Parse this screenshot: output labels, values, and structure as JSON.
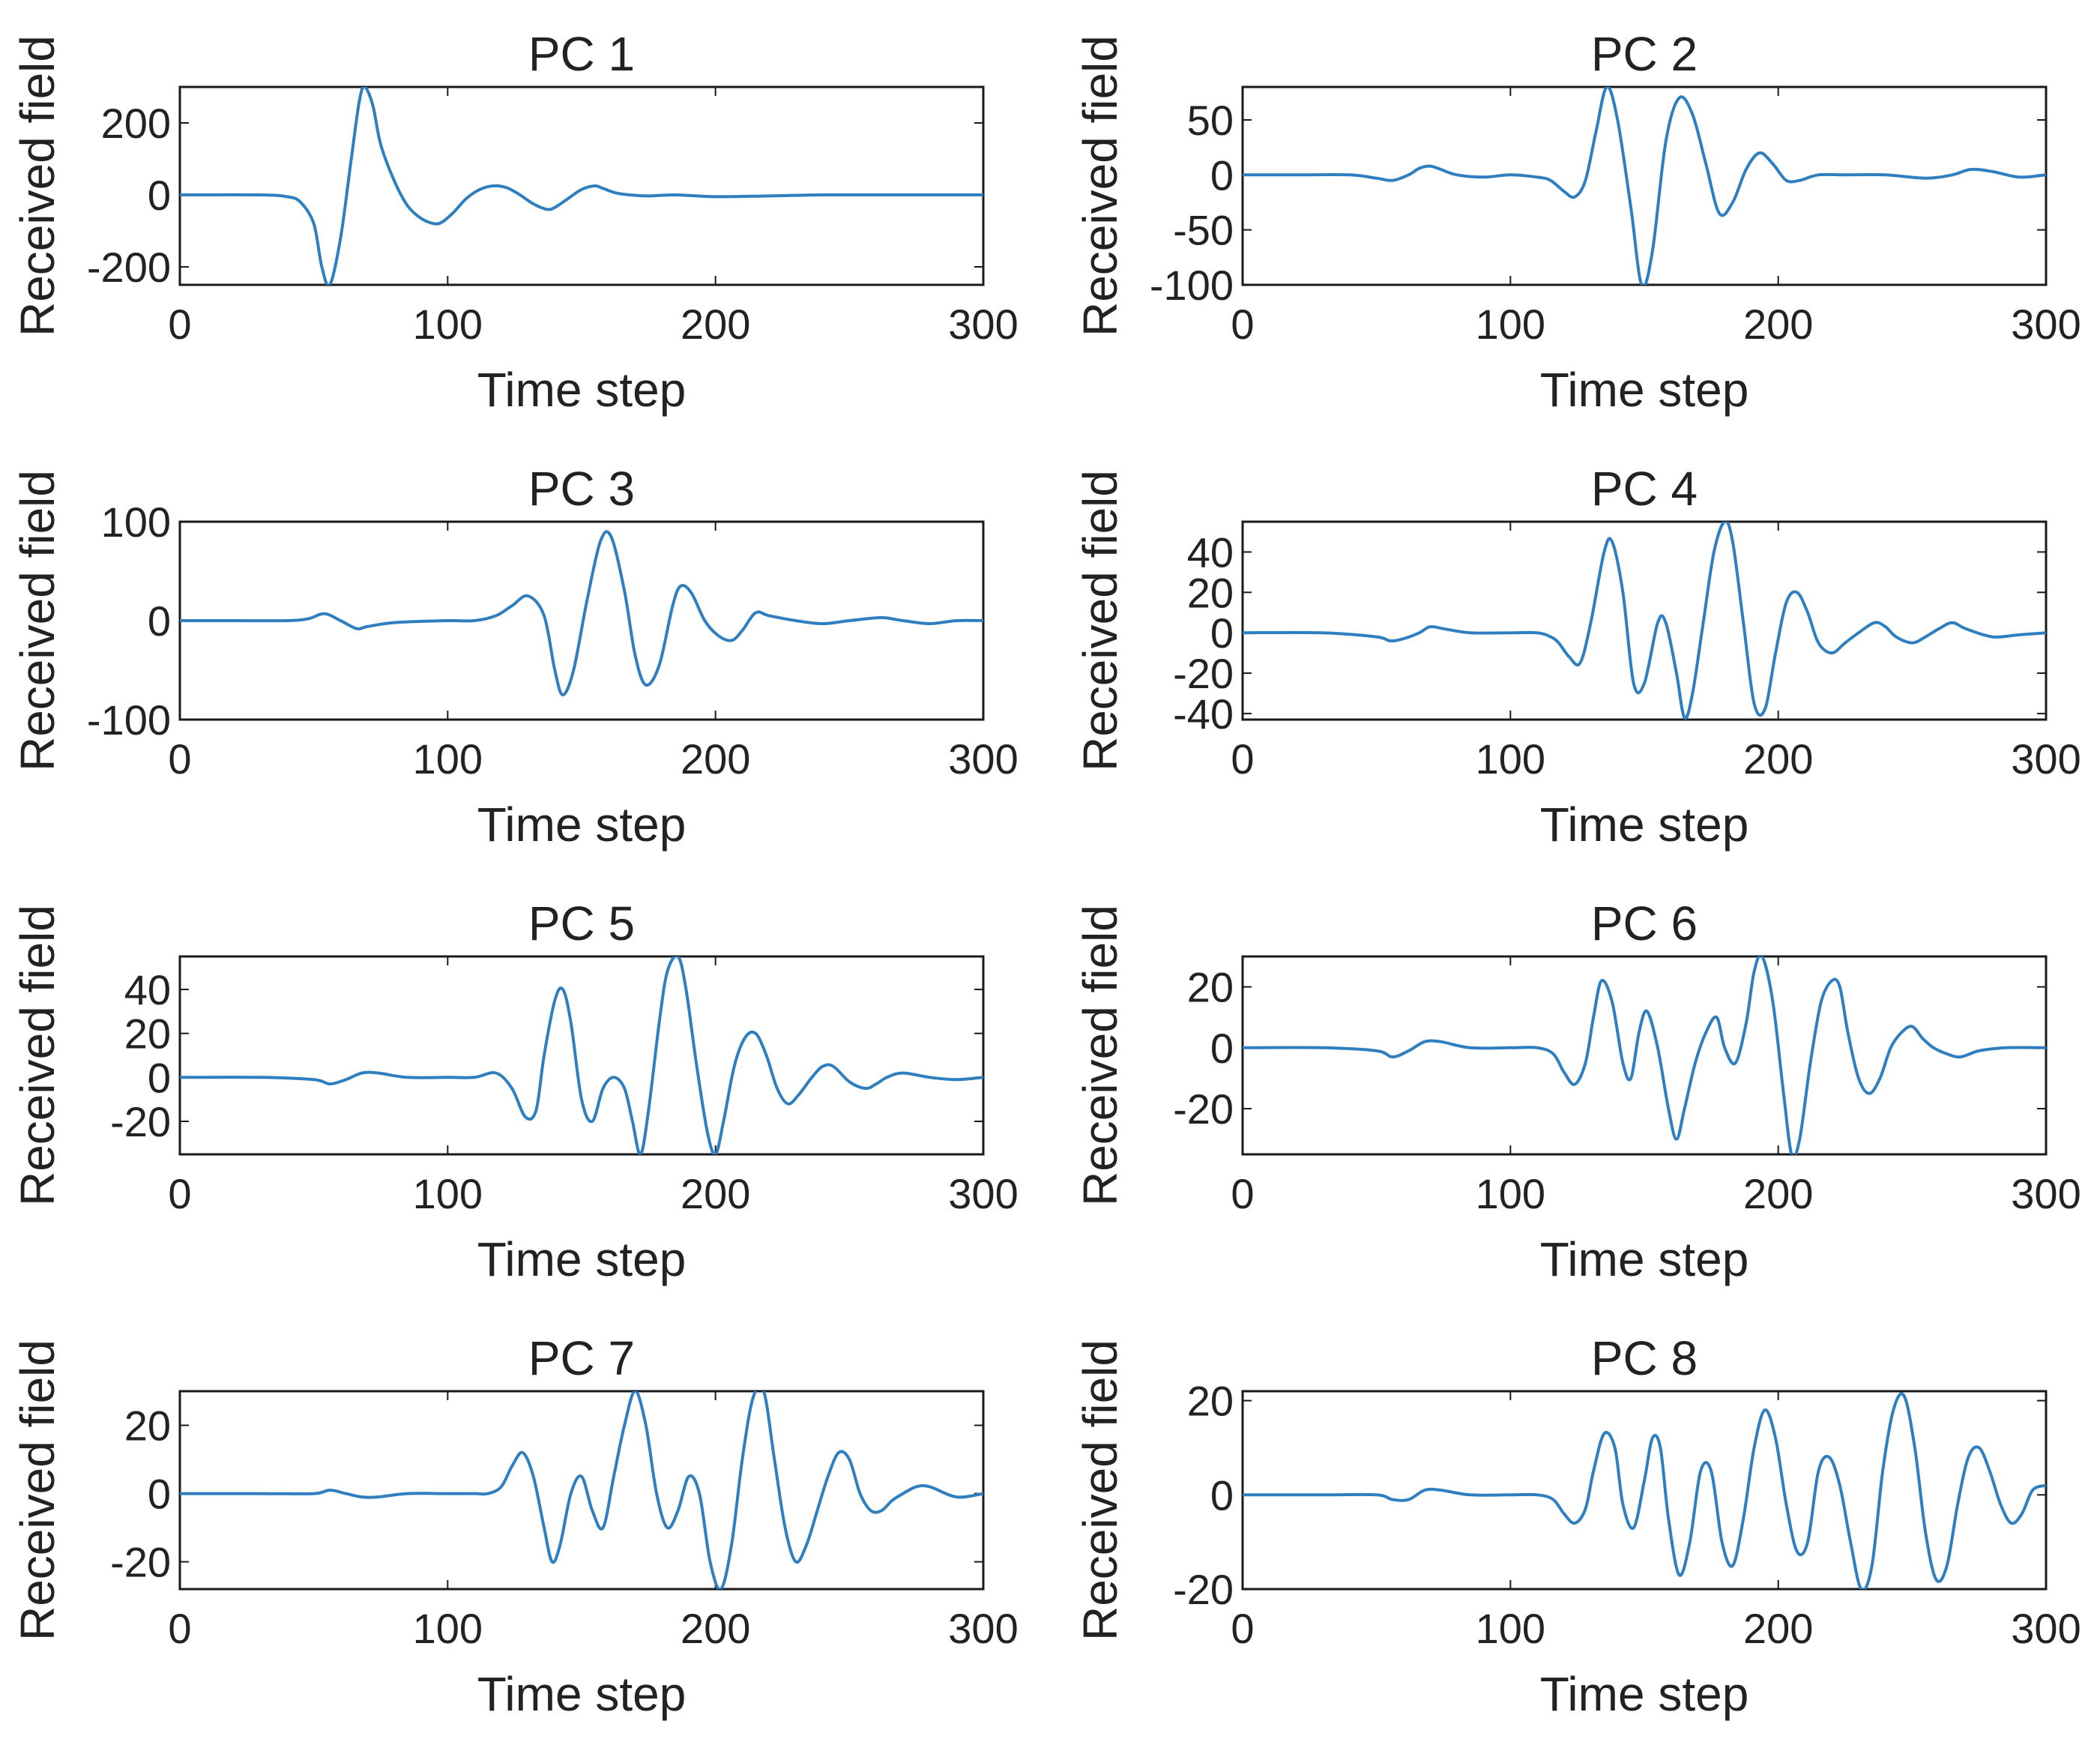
{
  "chart_data": [
    {
      "type": "line",
      "title": "PC 1",
      "xlabel": "Time step",
      "ylabel": "Received field",
      "xlim": [
        0,
        300
      ],
      "ylim": [
        -250,
        300
      ],
      "xticks": [
        "0",
        "100",
        "200",
        "300"
      ],
      "yticks": [
        -200,
        0,
        200
      ],
      "ytick_labels": [
        "-200",
        "0",
        "200"
      ],
      "series": [
        {
          "name": "PC 1",
          "color": "#2f7fc0",
          "x": [
            0,
            30,
            40,
            45,
            50,
            53,
            56,
            60,
            64,
            67,
            69,
            72,
            75,
            80,
            85,
            90,
            95,
            98,
            102,
            107,
            112,
            117,
            122,
            127,
            132,
            137,
            140,
            145,
            150,
            155,
            158,
            163,
            168,
            175,
            185,
            200,
            220,
            240,
            260,
            280,
            300
          ],
          "y": [
            0,
            0,
            -5,
            -20,
            -80,
            -200,
            -250,
            -120,
            100,
            260,
            300,
            250,
            140,
            40,
            -30,
            -65,
            -80,
            -75,
            -50,
            -10,
            15,
            25,
            20,
            0,
            -25,
            -40,
            -35,
            -10,
            15,
            25,
            18,
            5,
            0,
            -3,
            0,
            -5,
            -3,
            0,
            0,
            0,
            0
          ]
        }
      ]
    },
    {
      "type": "line",
      "title": "PC 2",
      "xlabel": "Time step",
      "ylabel": "Received field",
      "xlim": [
        0,
        300
      ],
      "ylim": [
        -100,
        80
      ],
      "xticks": [
        "0",
        "100",
        "200",
        "300"
      ],
      "yticks": [
        -100,
        -50,
        0,
        50
      ],
      "ytick_labels": [
        "-100",
        "-50",
        "0",
        "50"
      ],
      "series": [
        {
          "name": "PC 2",
          "color": "#2f7fc0",
          "x": [
            0,
            20,
            40,
            50,
            56,
            62,
            66,
            70,
            74,
            80,
            90,
            100,
            110,
            115,
            120,
            124,
            128,
            132,
            136,
            140,
            145,
            149,
            153,
            158,
            163,
            168,
            173,
            178,
            183,
            188,
            193,
            198,
            203,
            208,
            215,
            225,
            240,
            255,
            265,
            272,
            280,
            290,
            300
          ],
          "y": [
            0,
            0,
            0,
            -3,
            -5,
            0,
            6,
            8,
            5,
            0,
            -2,
            0,
            -2,
            -5,
            -15,
            -20,
            -5,
            40,
            80,
            50,
            -30,
            -100,
            -70,
            30,
            70,
            55,
            10,
            -35,
            -25,
            5,
            20,
            10,
            -5,
            -5,
            0,
            0,
            0,
            -3,
            0,
            5,
            3,
            -2,
            0
          ]
        }
      ]
    },
    {
      "type": "line",
      "title": "PC 3",
      "xlabel": "Time step",
      "ylabel": "Received field",
      "xlim": [
        0,
        300
      ],
      "ylim": [
        -100,
        100
      ],
      "xticks": [
        "0",
        "100",
        "200",
        "300"
      ],
      "yticks": [
        -100,
        0,
        100
      ],
      "ytick_labels": [
        "-100",
        "0",
        "100"
      ],
      "series": [
        {
          "name": "PC 3",
          "color": "#2f7fc0",
          "x": [
            0,
            20,
            40,
            48,
            54,
            60,
            66,
            70,
            80,
            100,
            110,
            118,
            124,
            130,
            136,
            140,
            143,
            147,
            152,
            157,
            161,
            166,
            170,
            174,
            179,
            184,
            187,
            191,
            196,
            201,
            206,
            210,
            215,
            220,
            230,
            240,
            250,
            262,
            270,
            280,
            290,
            300
          ],
          "y": [
            0,
            0,
            0,
            2,
            7,
            0,
            -8,
            -6,
            -2,
            0,
            0,
            5,
            15,
            25,
            5,
            -50,
            -75,
            -50,
            20,
            80,
            85,
            30,
            -35,
            -65,
            -45,
            15,
            35,
            28,
            0,
            -15,
            -20,
            -10,
            8,
            5,
            0,
            -3,
            0,
            3,
            0,
            -3,
            0,
            0
          ]
        }
      ]
    },
    {
      "type": "line",
      "title": "PC 4",
      "xlabel": "Time step",
      "ylabel": "Received field",
      "xlim": [
        0,
        300
      ],
      "ylim": [
        -43,
        55
      ],
      "xticks": [
        "0",
        "100",
        "200",
        "300"
      ],
      "yticks": [
        -40,
        -20,
        0,
        20,
        40
      ],
      "ytick_labels": [
        "-40",
        "-20",
        "0",
        "20",
        "40"
      ],
      "series": [
        {
          "name": "PC 4",
          "color": "#2f7fc0",
          "x": [
            0,
            30,
            50,
            55,
            60,
            66,
            70,
            75,
            85,
            100,
            110,
            115,
            118,
            122,
            126,
            130,
            135,
            138,
            142,
            146,
            150,
            155,
            158,
            162,
            165,
            168,
            172,
            176,
            180,
            183,
            187,
            191,
            195,
            199,
            203,
            207,
            211,
            215,
            220,
            225,
            230,
            236,
            240,
            244,
            250,
            255,
            260,
            265,
            270,
            280,
            290,
            300
          ],
          "y": [
            0,
            0,
            -2,
            -4,
            -3,
            0,
            3,
            2,
            0,
            0,
            0,
            -2,
            -5,
            -12,
            -15,
            5,
            40,
            45,
            20,
            -25,
            -25,
            5,
            5,
            -20,
            -42,
            -30,
            5,
            40,
            55,
            45,
            5,
            -35,
            -38,
            -10,
            15,
            20,
            10,
            -5,
            -10,
            -5,
            0,
            5,
            3,
            -2,
            -5,
            -2,
            2,
            5,
            2,
            -2,
            -1,
            0
          ]
        }
      ]
    },
    {
      "type": "line",
      "title": "PC 5",
      "xlabel": "Time step",
      "ylabel": "Received field",
      "xlim": [
        0,
        300
      ],
      "ylim": [
        -35,
        55
      ],
      "xticks": [
        "0",
        "100",
        "200",
        "300"
      ],
      "yticks": [
        -20,
        0,
        20,
        40
      ],
      "ytick_labels": [
        "-20",
        "0",
        "20",
        "40"
      ],
      "series": [
        {
          "name": "PC 5",
          "color": "#2f7fc0",
          "x": [
            0,
            30,
            50,
            56,
            62,
            68,
            74,
            85,
            100,
            110,
            118,
            124,
            129,
            133,
            136,
            140,
            143,
            146,
            150,
            154,
            158,
            162,
            166,
            169,
            172,
            175,
            179,
            182,
            186,
            189,
            193,
            197,
            200,
            203,
            207,
            211,
            215,
            219,
            223,
            227,
            231,
            236,
            240,
            244,
            250,
            256,
            260,
            264,
            270,
            280,
            290,
            300
          ],
          "y": [
            0,
            0,
            -1,
            -3,
            -1,
            2,
            2,
            0,
            0,
            0,
            2,
            -5,
            -18,
            -15,
            10,
            35,
            40,
            25,
            -10,
            -20,
            -5,
            0,
            -5,
            -20,
            -35,
            -15,
            25,
            48,
            55,
            40,
            5,
            -25,
            -35,
            -20,
            5,
            18,
            20,
            10,
            -5,
            -12,
            -8,
            0,
            5,
            5,
            -2,
            -5,
            -3,
            0,
            2,
            0,
            -1,
            0
          ]
        }
      ]
    },
    {
      "type": "line",
      "title": "PC 6",
      "xlabel": "Time step",
      "ylabel": "Received field",
      "xlim": [
        0,
        300
      ],
      "ylim": [
        -35,
        30
      ],
      "xticks": [
        "0",
        "100",
        "200",
        "300"
      ],
      "yticks": [
        -20,
        0,
        20
      ],
      "ytick_labels": [
        "-20",
        "0",
        "20"
      ],
      "series": [
        {
          "name": "PC 6",
          "color": "#2f7fc0",
          "x": [
            0,
            30,
            50,
            56,
            62,
            68,
            74,
            85,
            100,
            110,
            116,
            120,
            124,
            128,
            131,
            134,
            138,
            142,
            145,
            148,
            151,
            155,
            159,
            162,
            165,
            169,
            173,
            177,
            180,
            184,
            188,
            191,
            194,
            198,
            202,
            205,
            208,
            212,
            216,
            220,
            223,
            226,
            230,
            234,
            238,
            242,
            246,
            250,
            254,
            258,
            263,
            268,
            275,
            285,
            300
          ],
          "y": [
            0,
            0,
            -1,
            -3,
            -1,
            2,
            2,
            0,
            0,
            0,
            -2,
            -8,
            -12,
            -5,
            10,
            22,
            15,
            -5,
            -10,
            5,
            12,
            0,
            -20,
            -30,
            -20,
            -5,
            5,
            10,
            0,
            -5,
            8,
            25,
            30,
            15,
            -15,
            -35,
            -30,
            -5,
            15,
            22,
            20,
            5,
            -10,
            -15,
            -10,
            0,
            5,
            7,
            3,
            0,
            -2,
            -3,
            -1,
            0,
            0
          ]
        }
      ]
    },
    {
      "type": "line",
      "title": "PC 7",
      "xlabel": "Time step",
      "ylabel": "Received field",
      "xlim": [
        0,
        300
      ],
      "ylim": [
        -28,
        30
      ],
      "xticks": [
        "0",
        "100",
        "200",
        "300"
      ],
      "yticks": [
        -20,
        0,
        20
      ],
      "ytick_labels": [
        "-20",
        "0",
        "20"
      ],
      "series": [
        {
          "name": "PC 7",
          "color": "#2f7fc0",
          "x": [
            0,
            30,
            50,
            56,
            62,
            68,
            74,
            85,
            100,
            110,
            115,
            120,
            124,
            128,
            132,
            136,
            139,
            142,
            146,
            150,
            154,
            158,
            162,
            166,
            170,
            174,
            178,
            182,
            186,
            190,
            194,
            198,
            202,
            206,
            210,
            214,
            218,
            222,
            226,
            230,
            234,
            238,
            242,
            246,
            250,
            254,
            258,
            262,
            266,
            270,
            275,
            280,
            290,
            300
          ],
          "y": [
            0,
            0,
            0,
            1,
            0,
            -1,
            -1,
            0,
            0,
            0,
            0,
            2,
            8,
            12,
            5,
            -10,
            -20,
            -15,
            0,
            5,
            -5,
            -10,
            5,
            20,
            30,
            20,
            0,
            -10,
            -5,
            5,
            0,
            -20,
            -28,
            -15,
            10,
            28,
            30,
            10,
            -10,
            -20,
            -15,
            -5,
            5,
            12,
            10,
            0,
            -5,
            -5,
            -2,
            0,
            2,
            2,
            -1,
            0
          ]
        }
      ]
    },
    {
      "type": "line",
      "title": "PC 8",
      "xlabel": "Time step",
      "ylabel": "Received field",
      "xlim": [
        0,
        300
      ],
      "ylim": [
        -20,
        22
      ],
      "xticks": [
        "0",
        "100",
        "200",
        "300"
      ],
      "yticks": [
        -20,
        0,
        20
      ],
      "ytick_labels": [
        "-20",
        "0",
        "20"
      ],
      "series": [
        {
          "name": "PC 8",
          "color": "#2f7fc0",
          "x": [
            0,
            30,
            50,
            56,
            62,
            68,
            74,
            85,
            100,
            110,
            116,
            120,
            124,
            128,
            131,
            135,
            139,
            142,
            146,
            150,
            153,
            156,
            159,
            163,
            167,
            171,
            175,
            179,
            183,
            187,
            191,
            195,
            199,
            203,
            207,
            211,
            215,
            219,
            223,
            227,
            231,
            235,
            239,
            243,
            247,
            251,
            255,
            259,
            263,
            267,
            271,
            275,
            279,
            283,
            287,
            291,
            295,
            300
          ],
          "y": [
            0,
            0,
            0,
            -1,
            -1,
            1,
            1,
            0,
            0,
            0,
            -1,
            -4,
            -6,
            -3,
            5,
            13,
            10,
            -2,
            -7,
            3,
            12,
            10,
            -5,
            -17,
            -10,
            5,
            5,
            -10,
            -15,
            -5,
            10,
            18,
            12,
            -2,
            -12,
            -10,
            5,
            8,
            2,
            -10,
            -20,
            -15,
            5,
            18,
            21,
            10,
            -8,
            -18,
            -15,
            -2,
            8,
            10,
            5,
            -2,
            -6,
            -4,
            1,
            2
          ]
        }
      ]
    }
  ]
}
